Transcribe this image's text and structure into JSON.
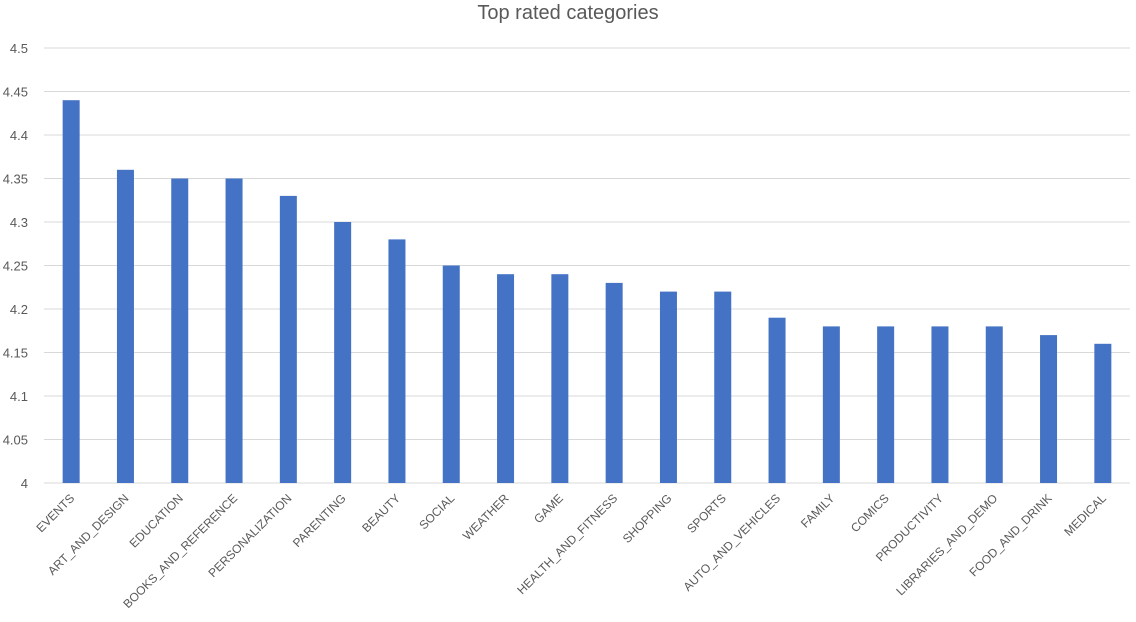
{
  "chart_data": {
    "type": "bar",
    "title": "Top rated categories",
    "xlabel": "",
    "ylabel": "",
    "ylim": [
      4,
      4.5
    ],
    "yticks": [
      "4",
      "4.05",
      "4.1",
      "4.15",
      "4.2",
      "4.25",
      "4.3",
      "4.35",
      "4.4",
      "4.45",
      "4.5"
    ],
    "grid": true,
    "legend": "none",
    "bar_color": "#4472c4",
    "categories": [
      "EVENTS",
      "ART_AND_DESIGN",
      "EDUCATION",
      "BOOKS_AND_REFERENCE",
      "PERSONALIZATION",
      "PARENTING",
      "BEAUTY",
      "SOCIAL",
      "WEATHER",
      "GAME",
      "HEALTH_AND_FITNESS",
      "SHOPPING",
      "SPORTS",
      "AUTO_AND_VEHICLES",
      "FAMILY",
      "COMICS",
      "PRODUCTIVITY",
      "LIBRARIES_AND_DEMO",
      "FOOD_AND_DRINK",
      "MEDICAL"
    ],
    "values": [
      4.44,
      4.36,
      4.35,
      4.35,
      4.33,
      4.3,
      4.28,
      4.25,
      4.24,
      4.24,
      4.23,
      4.22,
      4.22,
      4.19,
      4.18,
      4.18,
      4.18,
      4.18,
      4.17,
      4.16
    ]
  }
}
